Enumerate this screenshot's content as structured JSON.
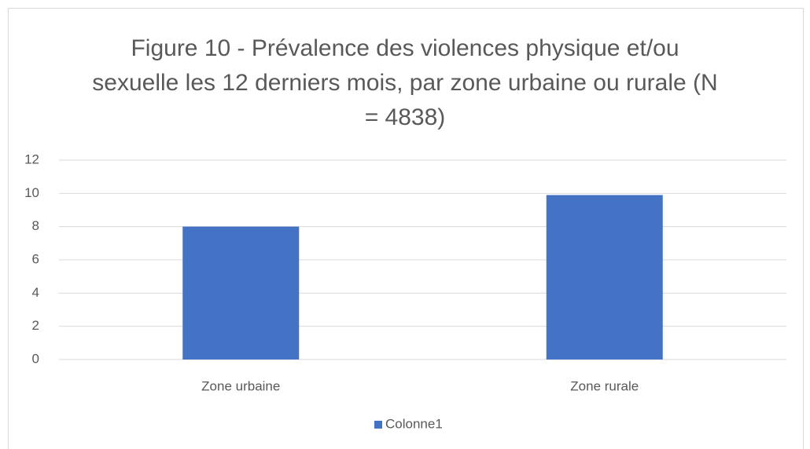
{
  "chart_data": {
    "type": "bar",
    "title": "Figure 10 - Prévalence des violences physique et/ou sexuelle les 12 derniers mois, par zone urbaine ou rurale (N = 4838)",
    "categories": [
      "Zone urbaine",
      "Zone rurale"
    ],
    "series": [
      {
        "name": "Colonne1",
        "color": "#4472c4",
        "values": [
          8,
          9.9
        ]
      }
    ],
    "ylim": [
      0,
      12
    ],
    "yticks": [
      0,
      2,
      4,
      6,
      8,
      10,
      12
    ],
    "grid": true,
    "legend": "bottom"
  }
}
